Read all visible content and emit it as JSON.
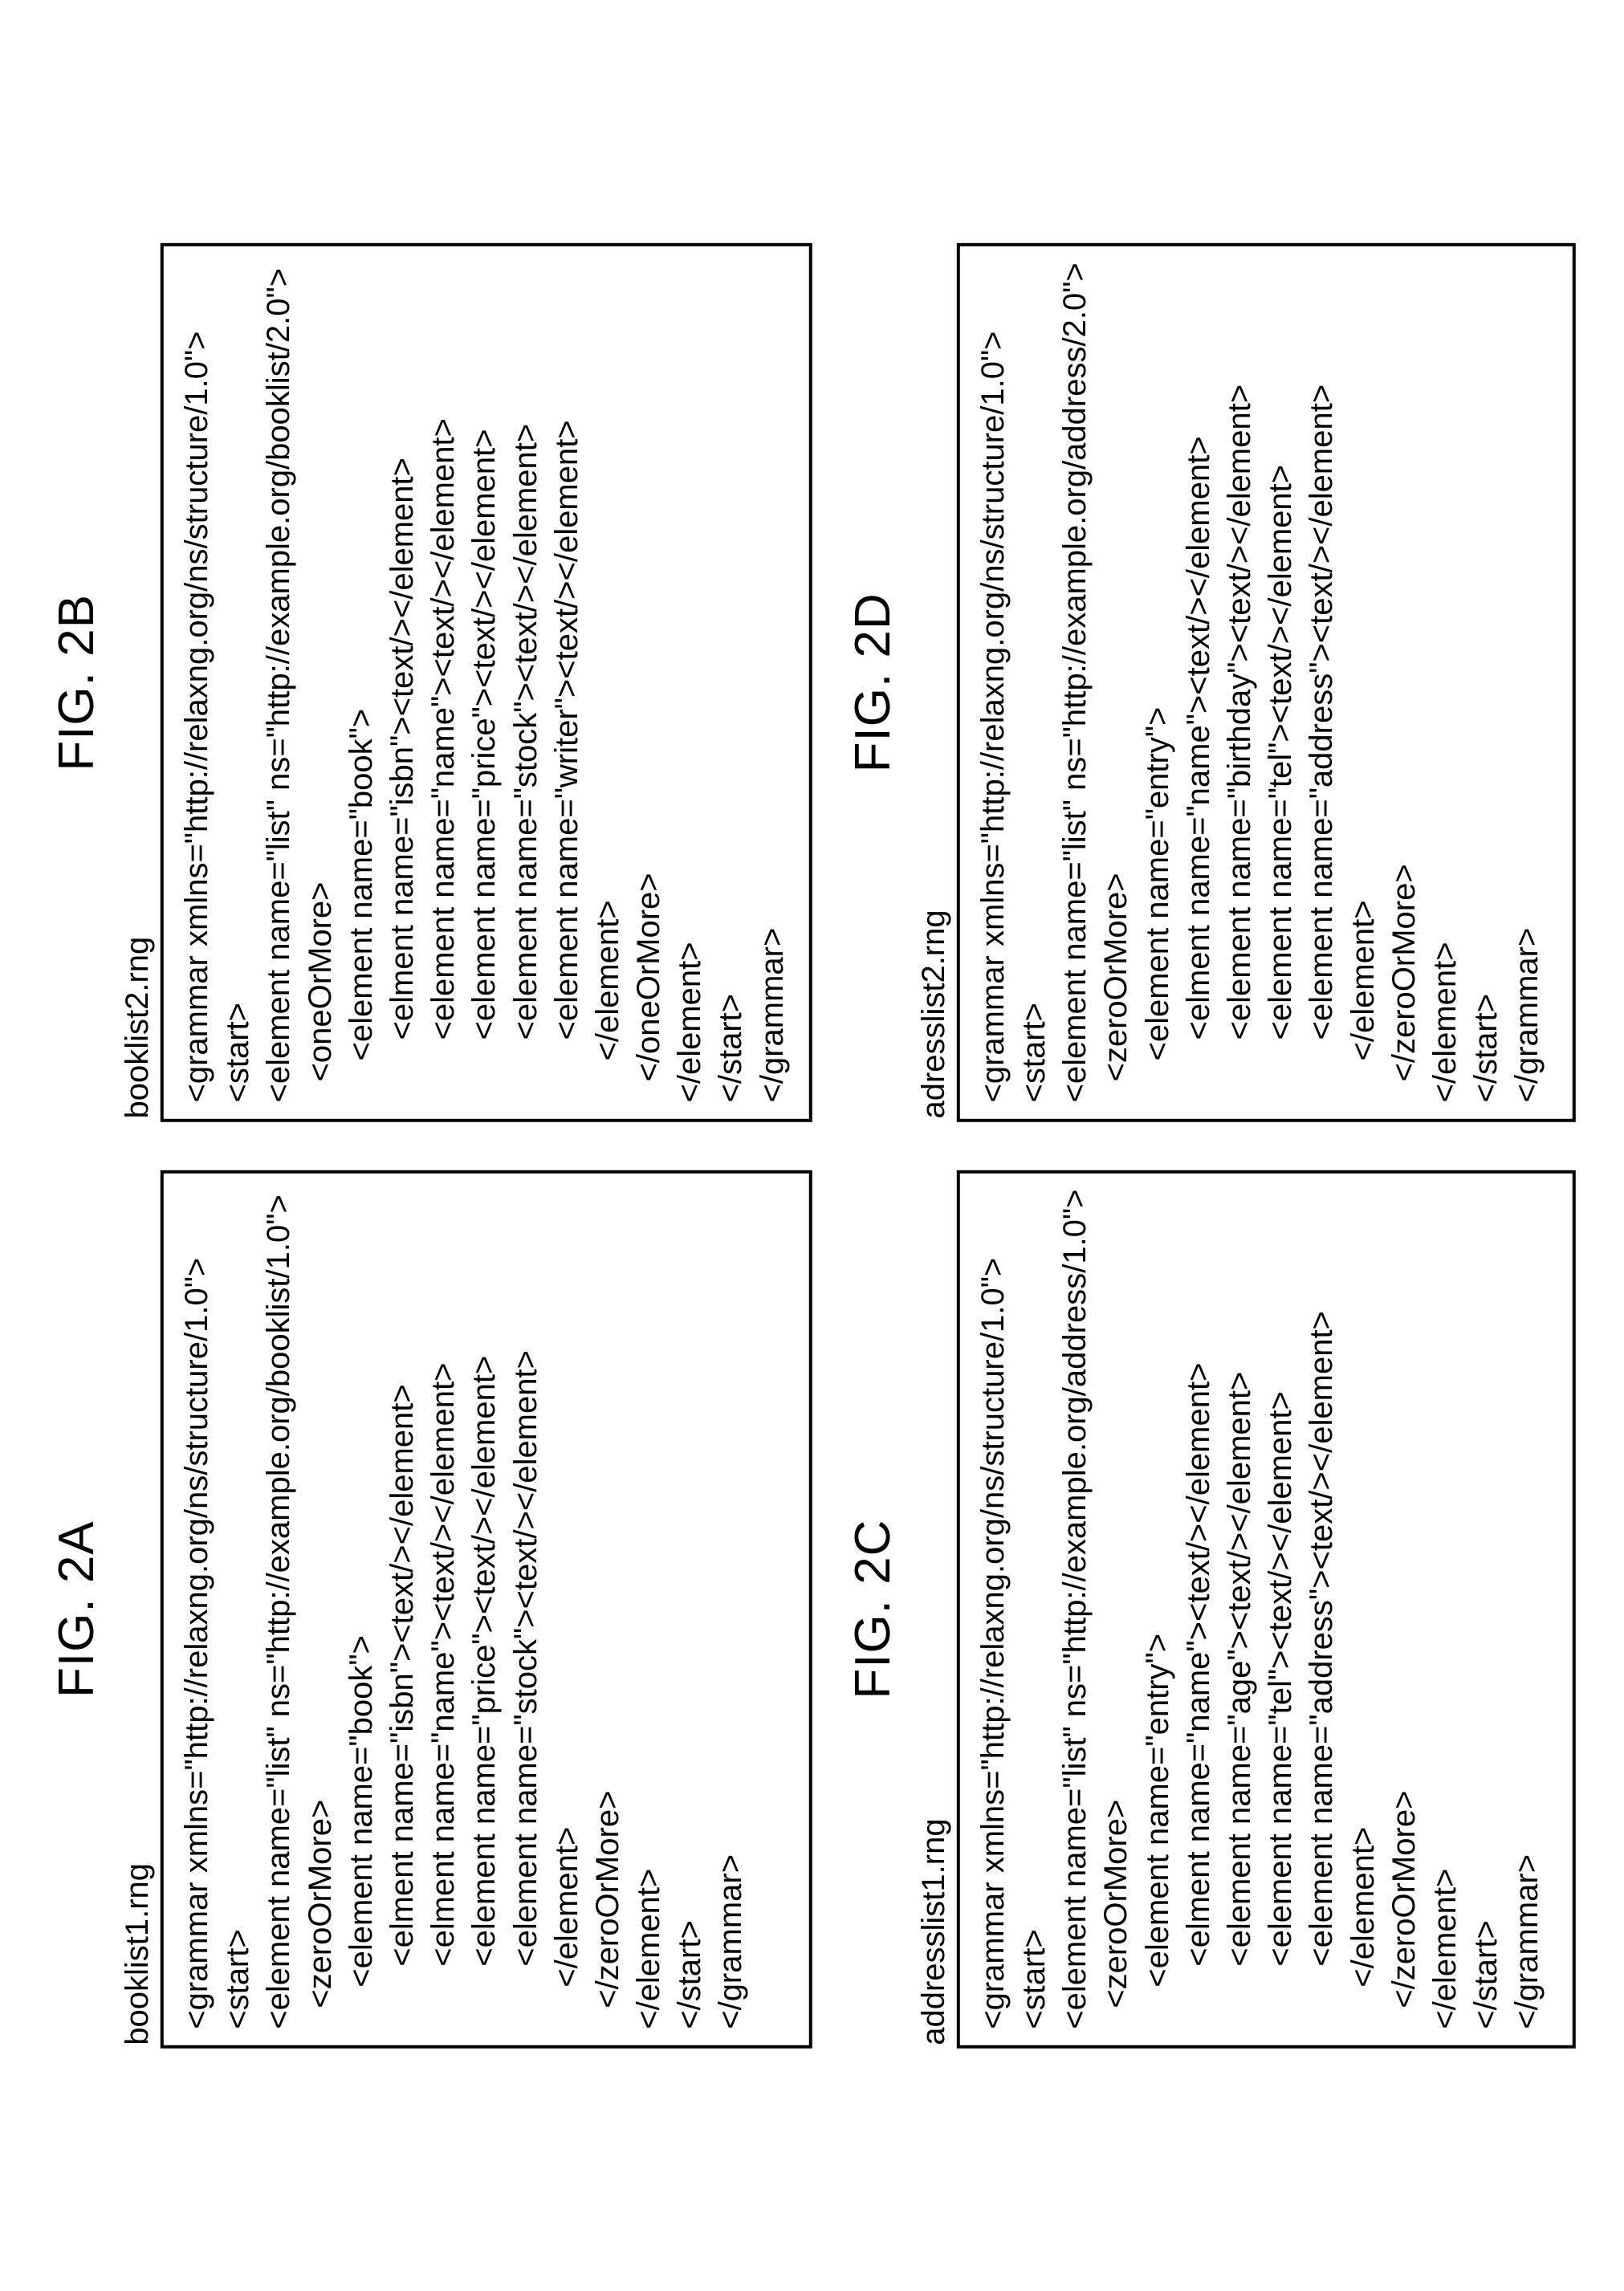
{
  "figures": [
    {
      "label": "FIG. 2A",
      "filename": "booklist1.rng",
      "lines": [
        {
          "i": 0,
          "t": "<grammar xmlns=\"http://relaxng.org/ns/structure/1.0\">"
        },
        {
          "i": 0,
          "t": "<start>"
        },
        {
          "i": 0,
          "t": "<element name=\"list\" ns=\"http://example.org/booklist/1.0\">"
        },
        {
          "i": 1,
          "t": "<zeroOrMore>"
        },
        {
          "i": 2,
          "t": "<element name=\"book\">"
        },
        {
          "i": 3,
          "t": "<elment name=\"isbn\"><text/></element>"
        },
        {
          "i": 3,
          "t": "<elment name=\"name\"><text/></element>"
        },
        {
          "i": 3,
          "t": "<element name=\"price\"><text/></element>"
        },
        {
          "i": 3,
          "t": "<element name=\"stock\"><text/></element>"
        },
        {
          "i": 2,
          "t": "</element>"
        },
        {
          "i": 1,
          "t": "</zeroOrMore>"
        },
        {
          "i": 0,
          "t": "</element>"
        },
        {
          "i": 0,
          "t": "</start>"
        },
        {
          "i": 0,
          "t": "</grammar>"
        }
      ]
    },
    {
      "label": "FIG. 2B",
      "filename": "booklist2.rng",
      "lines": [
        {
          "i": 0,
          "t": "<grammar xmlns=\"http://relaxng.org/ns/structure/1.0\">"
        },
        {
          "i": 0,
          "t": "<start>"
        },
        {
          "i": 0,
          "t": "<element name=\"list\" ns=\"http://example.org/booklist/2.0\">"
        },
        {
          "i": 1,
          "t": "<oneOrMore>"
        },
        {
          "i": 2,
          "t": "<element name=\"book\">"
        },
        {
          "i": 3,
          "t": "<elment name=\"isbn\"><text/></element>"
        },
        {
          "i": 3,
          "t": "<element name=\"name\"><text/></element>"
        },
        {
          "i": 3,
          "t": "<element name=\"price\"><text/></element>"
        },
        {
          "i": 3,
          "t": "<element name=\"stock\"><text/></element>"
        },
        {
          "i": 3,
          "t": "<element name=\"writer\"><text/></element>"
        },
        {
          "i": 2,
          "t": "</element>"
        },
        {
          "i": 1,
          "t": "</oneOrMore>"
        },
        {
          "i": 0,
          "t": "</element>"
        },
        {
          "i": 0,
          "t": "</start>"
        },
        {
          "i": 0,
          "t": "</grammar>"
        }
      ]
    },
    {
      "label": "FIG. 2C",
      "filename": "addresslist1.rng",
      "lines": [
        {
          "i": 0,
          "t": "<grammar xmlns=\"http://relaxng.org/ns/structure/1.0\">"
        },
        {
          "i": 0,
          "t": "<start>"
        },
        {
          "i": 0,
          "t": "<element name=\"list\" ns=\"http://example.org/address/1.0\">"
        },
        {
          "i": 1,
          "t": "<zeroOrMore>"
        },
        {
          "i": 2,
          "t": "<element name=\"entry\">"
        },
        {
          "i": 3,
          "t": "<elment name=\"name\"><text/></element>"
        },
        {
          "i": 3,
          "t": "<element name=\"age\"><text/></element>"
        },
        {
          "i": 3,
          "t": "<element name=\"tel\"><text/></element>"
        },
        {
          "i": 3,
          "t": "<element name=\"address\"><text/></element>"
        },
        {
          "i": 2,
          "t": "</element>"
        },
        {
          "i": 1,
          "t": "</zeroOrMore>"
        },
        {
          "i": 0,
          "t": "</element>"
        },
        {
          "i": 0,
          "t": "</start>"
        },
        {
          "i": 0,
          "t": "</grammar>"
        }
      ]
    },
    {
      "label": "FIG. 2D",
      "filename": "adresslist2.rng",
      "lines": [
        {
          "i": 0,
          "t": "<grammar xmlns=\"http://relaxng.org/ns/structure/1.0\">"
        },
        {
          "i": 0,
          "t": "<start>"
        },
        {
          "i": 0,
          "t": "<element name=\"list\" ns=\"http://example.org/address/2.0\">"
        },
        {
          "i": 1,
          "t": "<zeroOrMore>"
        },
        {
          "i": 2,
          "t": "<element name=\"entry\">"
        },
        {
          "i": 3,
          "t": "<elment name=\"name\"><text/></element>"
        },
        {
          "i": 3,
          "t": "<element name=\"birthday\"><text/></element>"
        },
        {
          "i": 3,
          "t": "<element name=\"tel\"><text/></element>"
        },
        {
          "i": 3,
          "t": "<element name=\"address\"><text/></element>"
        },
        {
          "i": 2,
          "t": "</element>"
        },
        {
          "i": 1,
          "t": "</zeroOrMore>"
        },
        {
          "i": 0,
          "t": "</element>"
        },
        {
          "i": 0,
          "t": "</start>"
        },
        {
          "i": 0,
          "t": "</grammar>"
        }
      ]
    }
  ]
}
